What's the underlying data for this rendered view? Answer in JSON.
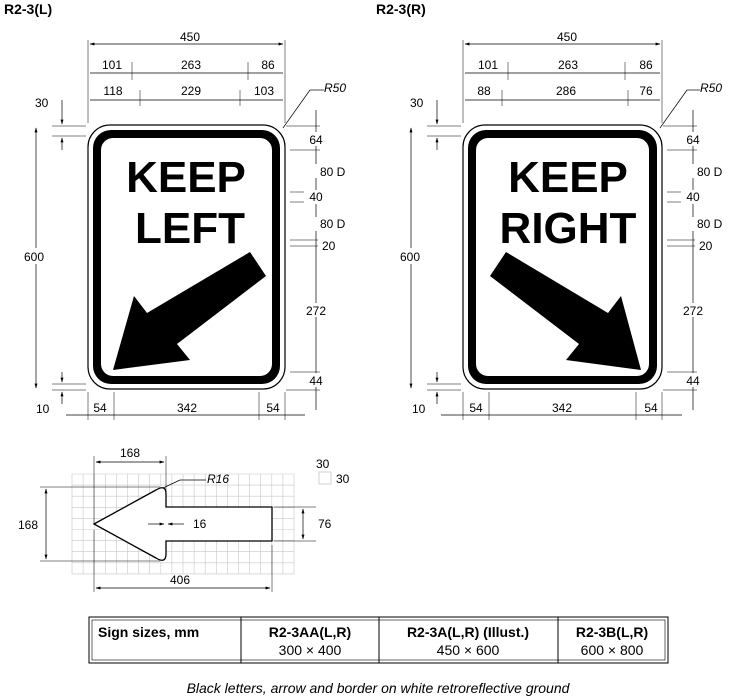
{
  "left_sign": {
    "code": "R2-3(L)",
    "line1": "KEEP",
    "line2": "LEFT",
    "dims": {
      "width_total": "450",
      "w_a1": "101",
      "w_a2": "263",
      "w_a3": "86",
      "w_b1": "118",
      "w_b2": "229",
      "w_b3": "103",
      "radius": "R50",
      "height_total": "600",
      "top_border": "30",
      "bottom_border": "10",
      "v1": "64",
      "v2": "80 D",
      "v3": "40",
      "v4": "80 D",
      "v5": "20",
      "v6": "272",
      "v7": "44",
      "b1": "54",
      "b2": "342",
      "b3": "54"
    }
  },
  "right_sign": {
    "code": "R2-3(R)",
    "line1": "KEEP",
    "line2": "RIGHT",
    "dims": {
      "width_total": "450",
      "w_a1": "101",
      "w_a2": "263",
      "w_a3": "86",
      "w_b1": "88",
      "w_b2": "286",
      "w_b3": "76",
      "radius": "R50",
      "height_total": "600",
      "top_border": "30",
      "bottom_border": "10",
      "v1": "64",
      "v2": "80 D",
      "v3": "40",
      "v4": "80 D",
      "v5": "20",
      "v6": "272",
      "v7": "44",
      "b1": "54",
      "b2": "342",
      "b3": "54"
    }
  },
  "arrow_detail": {
    "head_width": "168",
    "head_height": "168",
    "radius": "R16",
    "shaft_offset": "16",
    "shaft_height": "76",
    "total_length": "406",
    "grid_legend_a": "30",
    "grid_legend_b": "30"
  },
  "size_table": {
    "header": "Sign sizes, mm",
    "columns": [
      {
        "code": "R2-3AA(L,R)",
        "size": "300 × 400"
      },
      {
        "code": "R2-3A(L,R) (Illust.)",
        "size": "450 × 600"
      },
      {
        "code": "R2-3B(L,R)",
        "size": "600 × 800"
      }
    ]
  },
  "caption": "Black letters, arrow and border on white retroreflective ground"
}
